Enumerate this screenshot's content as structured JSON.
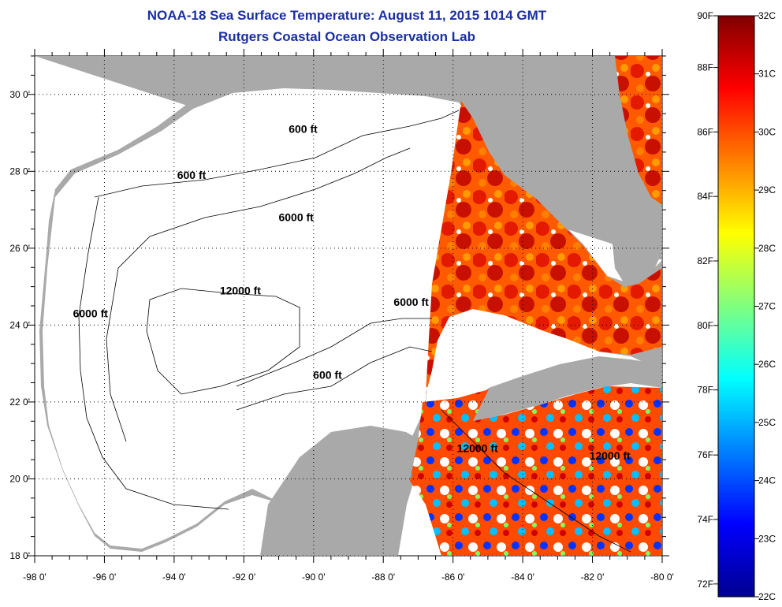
{
  "title": "NOAA-18 Sea Surface Temperature:  August 11, 2015 1014 GMT",
  "subtitle": "Rutgers Coastal Ocean Observation Lab",
  "map": {
    "lon_range": [
      -98,
      -80
    ],
    "lat_range": [
      18,
      31
    ],
    "lon_ticks": [
      "-98 0'",
      "-96 0'",
      "-94 0'",
      "-92 0'",
      "-90 0'",
      "-88 0'",
      "-86 0'",
      "-84 0'",
      "-82 0'",
      "-80 0'"
    ],
    "lat_ticks": [
      "18 0'",
      "20 0'",
      "22 0'",
      "24 0'",
      "26 0'",
      "28 0'",
      "30 0'"
    ],
    "land_color": "#a9a9a9",
    "no_data_color": "#ffffff",
    "contour_labels": [
      {
        "text": "600 ft",
        "lon": -90.3,
        "lat": 29.0
      },
      {
        "text": "600 ft",
        "lon": -93.5,
        "lat": 27.8
      },
      {
        "text": "6000 ft",
        "lon": -90.5,
        "lat": 26.7
      },
      {
        "text": "6000 ft",
        "lon": -96.4,
        "lat": 24.2
      },
      {
        "text": "12000 ft",
        "lon": -92.1,
        "lat": 24.8
      },
      {
        "text": "6000 ft",
        "lon": -87.2,
        "lat": 24.5
      },
      {
        "text": "600 ft",
        "lon": -89.6,
        "lat": 22.6
      },
      {
        "text": "12000 ft",
        "lon": -85.3,
        "lat": 20.7
      },
      {
        "text": "12000 ft",
        "lon": -81.5,
        "lat": 20.5
      }
    ]
  },
  "colorbar": {
    "min_c": 22,
    "max_c": 32,
    "celsius_labels": [
      "22C",
      "23C",
      "24C",
      "25C",
      "26C",
      "27C",
      "28C",
      "29C",
      "30C",
      "31C",
      "32C"
    ],
    "fahrenheit_labels": [
      {
        "text": "72F",
        "value_c": 22.22
      },
      {
        "text": "74F",
        "value_c": 23.33
      },
      {
        "text": "76F",
        "value_c": 24.44
      },
      {
        "text": "78F",
        "value_c": 25.56
      },
      {
        "text": "80F",
        "value_c": 26.67
      },
      {
        "text": "82F",
        "value_c": 27.78
      },
      {
        "text": "84F",
        "value_c": 28.89
      },
      {
        "text": "86F",
        "value_c": 30.0
      },
      {
        "text": "88F",
        "value_c": 31.11
      },
      {
        "text": "90F",
        "value_c": 32.22
      }
    ],
    "colors": [
      "#00008f",
      "#0000ff",
      "#0080ff",
      "#00ffff",
      "#80ff80",
      "#ffff00",
      "#ff8000",
      "#ff0000",
      "#800000"
    ]
  }
}
